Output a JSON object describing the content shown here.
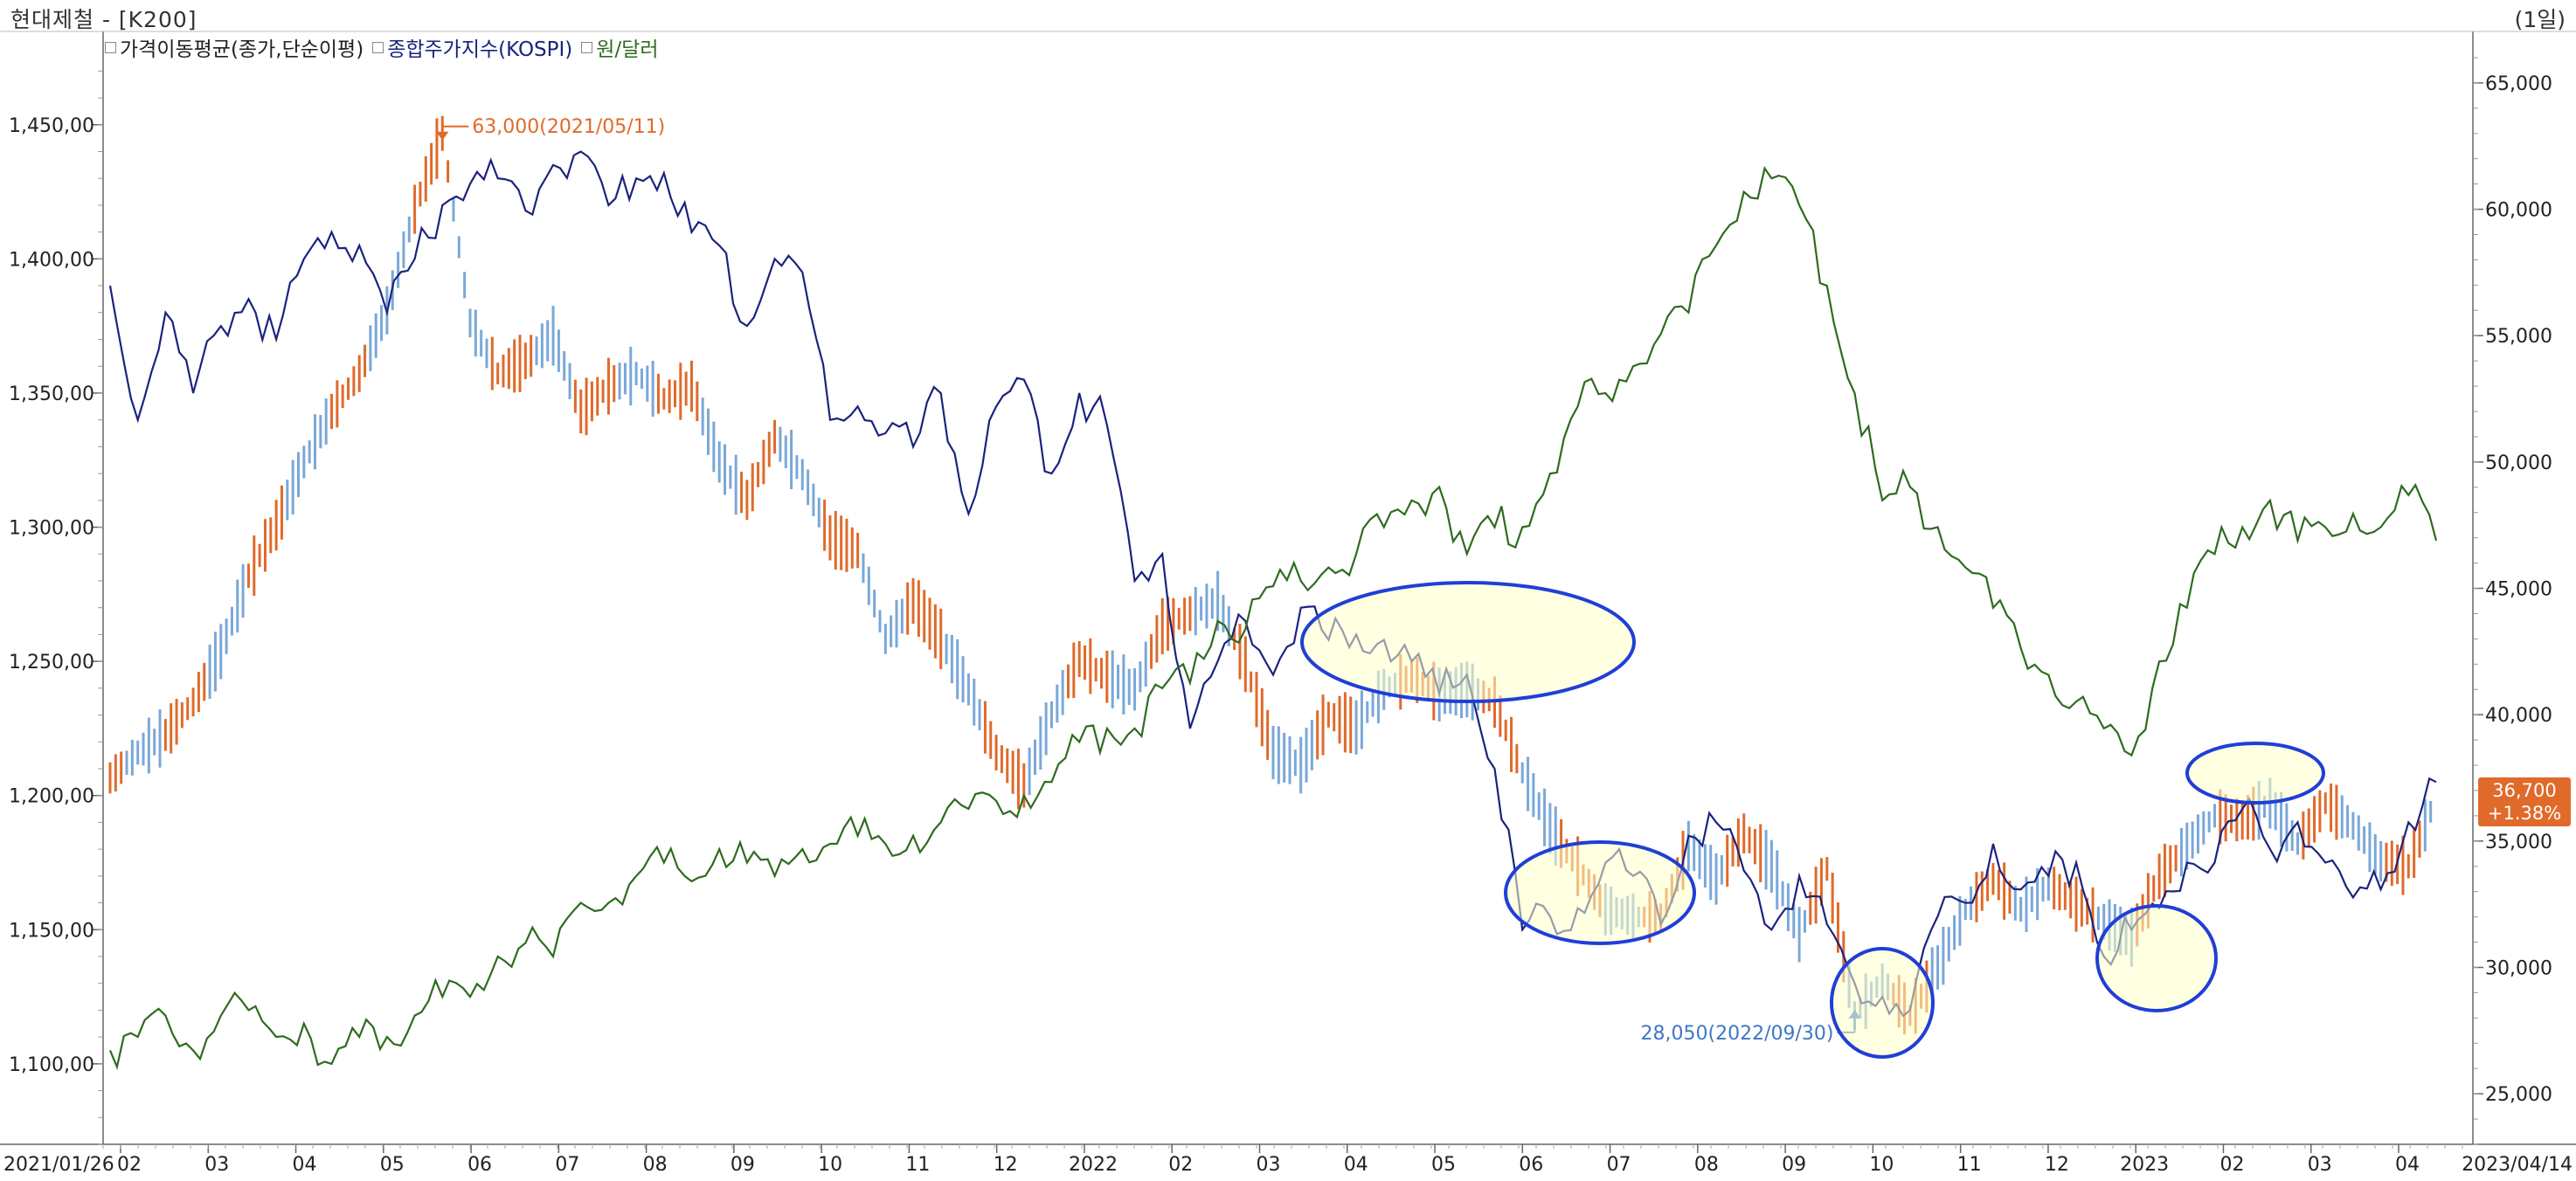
{
  "header": {
    "title": "현대제철 - [K200]",
    "period": "(1일)"
  },
  "legend": [
    {
      "label": "가격이동평균(종가,단순이평)",
      "color": "#222222"
    },
    {
      "label": "종합주가지수(KOSPI)",
      "color": "#1a237e"
    },
    {
      "label": "원/달러",
      "color": "#2e6b1f"
    }
  ],
  "chart_data": {
    "type": "line",
    "x_start_label": "2021/01/26",
    "x_end_label": "2023/04/14",
    "x_tick_labels": [
      "02",
      "03",
      "04",
      "05",
      "06",
      "07",
      "08",
      "09",
      "10",
      "11",
      "12",
      "2022",
      "02",
      "03",
      "04",
      "05",
      "06",
      "07",
      "08",
      "09",
      "10",
      "11",
      "12",
      "2023",
      "02",
      "03",
      "04"
    ],
    "left_axis": {
      "ticks": [
        "1,100,00",
        "1,150,00",
        "1,200,00",
        "1,250,00",
        "1,300,00",
        "1,350,00",
        "1,400,00",
        "1,450,00"
      ],
      "ylim": [
        1070,
        1475
      ]
    },
    "right_axis": {
      "ticks": [
        "25,000",
        "30,000",
        "35,000",
        "40,000",
        "45,000",
        "50,000",
        "55,000",
        "60,000",
        "65,000"
      ],
      "ylim": [
        23000,
        66000
      ]
    },
    "series": [
      {
        "name": "종합주가지수(KOSPI)",
        "axis": "left",
        "color": "#1a237e",
        "values": [
          1390,
          1340,
          1380,
          1350,
          1375,
          1385,
          1370,
          1400,
          1410,
          1405,
          1380,
          1400,
          1420,
          1428,
          1430,
          1418,
          1435,
          1440,
          1420,
          1430,
          1432,
          1410,
          1405,
          1375,
          1400,
          1395,
          1340,
          1345,
          1335,
          1330,
          1350,
          1305,
          1345,
          1355,
          1320,
          1350,
          1338,
          1280,
          1290,
          1225,
          1250,
          1265,
          1245,
          1270,
          1258,
          1260,
          1258,
          1250,
          1238,
          1245,
          1210,
          1150,
          1155,
          1158,
          1175,
          1170,
          1152,
          1185,
          1190,
          1172,
          1150,
          1170,
          1152,
          1130,
          1125,
          1120,
          1155,
          1160,
          1182,
          1165,
          1170,
          1175,
          1140,
          1150,
          1158,
          1175,
          1175,
          1195,
          1180,
          1190,
          1175,
          1162,
          1165,
          1190,
          1205
        ]
      },
      {
        "name": "원/달러",
        "axis": "left",
        "color": "#2e6b1f",
        "values": [
          1105,
          1110,
          1118,
          1105,
          1118,
          1120,
          1110,
          1115,
          1100,
          1110,
          1110,
          1118,
          1125,
          1125,
          1140,
          1145,
          1140,
          1160,
          1160,
          1170,
          1175,
          1168,
          1180,
          1175,
          1170,
          1180,
          1182,
          1185,
          1182,
          1185,
          1190,
          1195,
          1198,
          1200,
          1205,
          1220,
          1225,
          1225,
          1240,
          1242,
          1265,
          1262,
          1278,
          1280,
          1285,
          1290,
          1300,
          1310,
          1315,
          1290,
          1300,
          1300,
          1320,
          1345,
          1350,
          1360,
          1372,
          1380,
          1405,
          1425,
          1430,
          1420,
          1390,
          1350,
          1310,
          1315,
          1300,
          1285,
          1270,
          1255,
          1245,
          1235,
          1225,
          1215,
          1250,
          1270,
          1290,
          1300,
          1310,
          1295,
          1300,
          1305,
          1300,
          1312,
          1295
        ]
      },
      {
        "name": "현대제철",
        "axis": "right",
        "color": "#e06a2a",
        "values": [
          37500,
          38500,
          39200,
          40500,
          42500,
          45500,
          47500,
          50000,
          52000,
          53500,
          56000,
          60000,
          63000,
          55500,
          53500,
          54000,
          55000,
          52000,
          53000,
          53500,
          52500,
          53000,
          50000,
          48500,
          51000,
          49500,
          47000,
          46500,
          43000,
          44500,
          43000,
          41000,
          38500,
          37200,
          40000,
          42200,
          41500,
          41000,
          43500,
          44000,
          44500,
          42000,
          38500,
          38000,
          40000,
          39500,
          41000,
          41500,
          40800,
          41000,
          40500,
          37700,
          35500,
          34000,
          32300,
          32000,
          32000,
          34800,
          33500,
          35300,
          34000,
          31300,
          33900,
          28100,
          29500,
          28100,
          30000,
          32300,
          33500,
          32300,
          33300,
          32500,
          31800,
          31200,
          33600,
          34800,
          36000,
          35800,
          36500,
          34900,
          36500,
          35600,
          34200,
          34000,
          36700
        ]
      }
    ],
    "annotations": [
      {
        "text": "63,000(2021/05/11)",
        "color": "#e06a2a"
      },
      {
        "text": "28,050(2022/09/30)",
        "color": "#3d78c4"
      }
    ],
    "last_value": {
      "price": "36,700",
      "change": "+1.38%"
    }
  }
}
